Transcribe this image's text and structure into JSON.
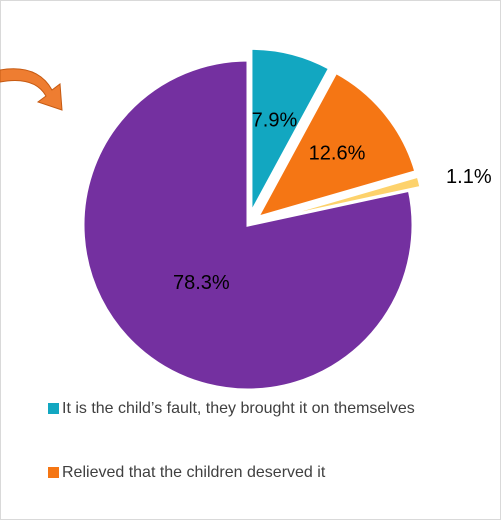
{
  "chart_data": {
    "type": "pie",
    "title": "",
    "slices": [
      {
        "label": "It is the child’s fault, they brought it on themselves",
        "value": 7.9,
        "display": "7.9%",
        "color": "#12A7C1",
        "exploded": true
      },
      {
        "label": "Relieved that the children deserved it",
        "value": 12.6,
        "display": "12.6%",
        "color": "#F57614",
        "exploded": true
      },
      {
        "label": "",
        "value": 1.1,
        "display": "1.1%",
        "color": "#FDD26C",
        "exploded": true
      },
      {
        "label": "",
        "value": 78.3,
        "display": "78.3%",
        "color": "#7430A0",
        "exploded": false
      }
    ],
    "legend": {
      "placement": "bottom",
      "entries": [
        "It is the child’s fault, they brought it on themselves",
        "Relieved that the children deserved it"
      ]
    },
    "annotation": {
      "shape": "curved-arrow",
      "color": "#EE7D31"
    }
  }
}
